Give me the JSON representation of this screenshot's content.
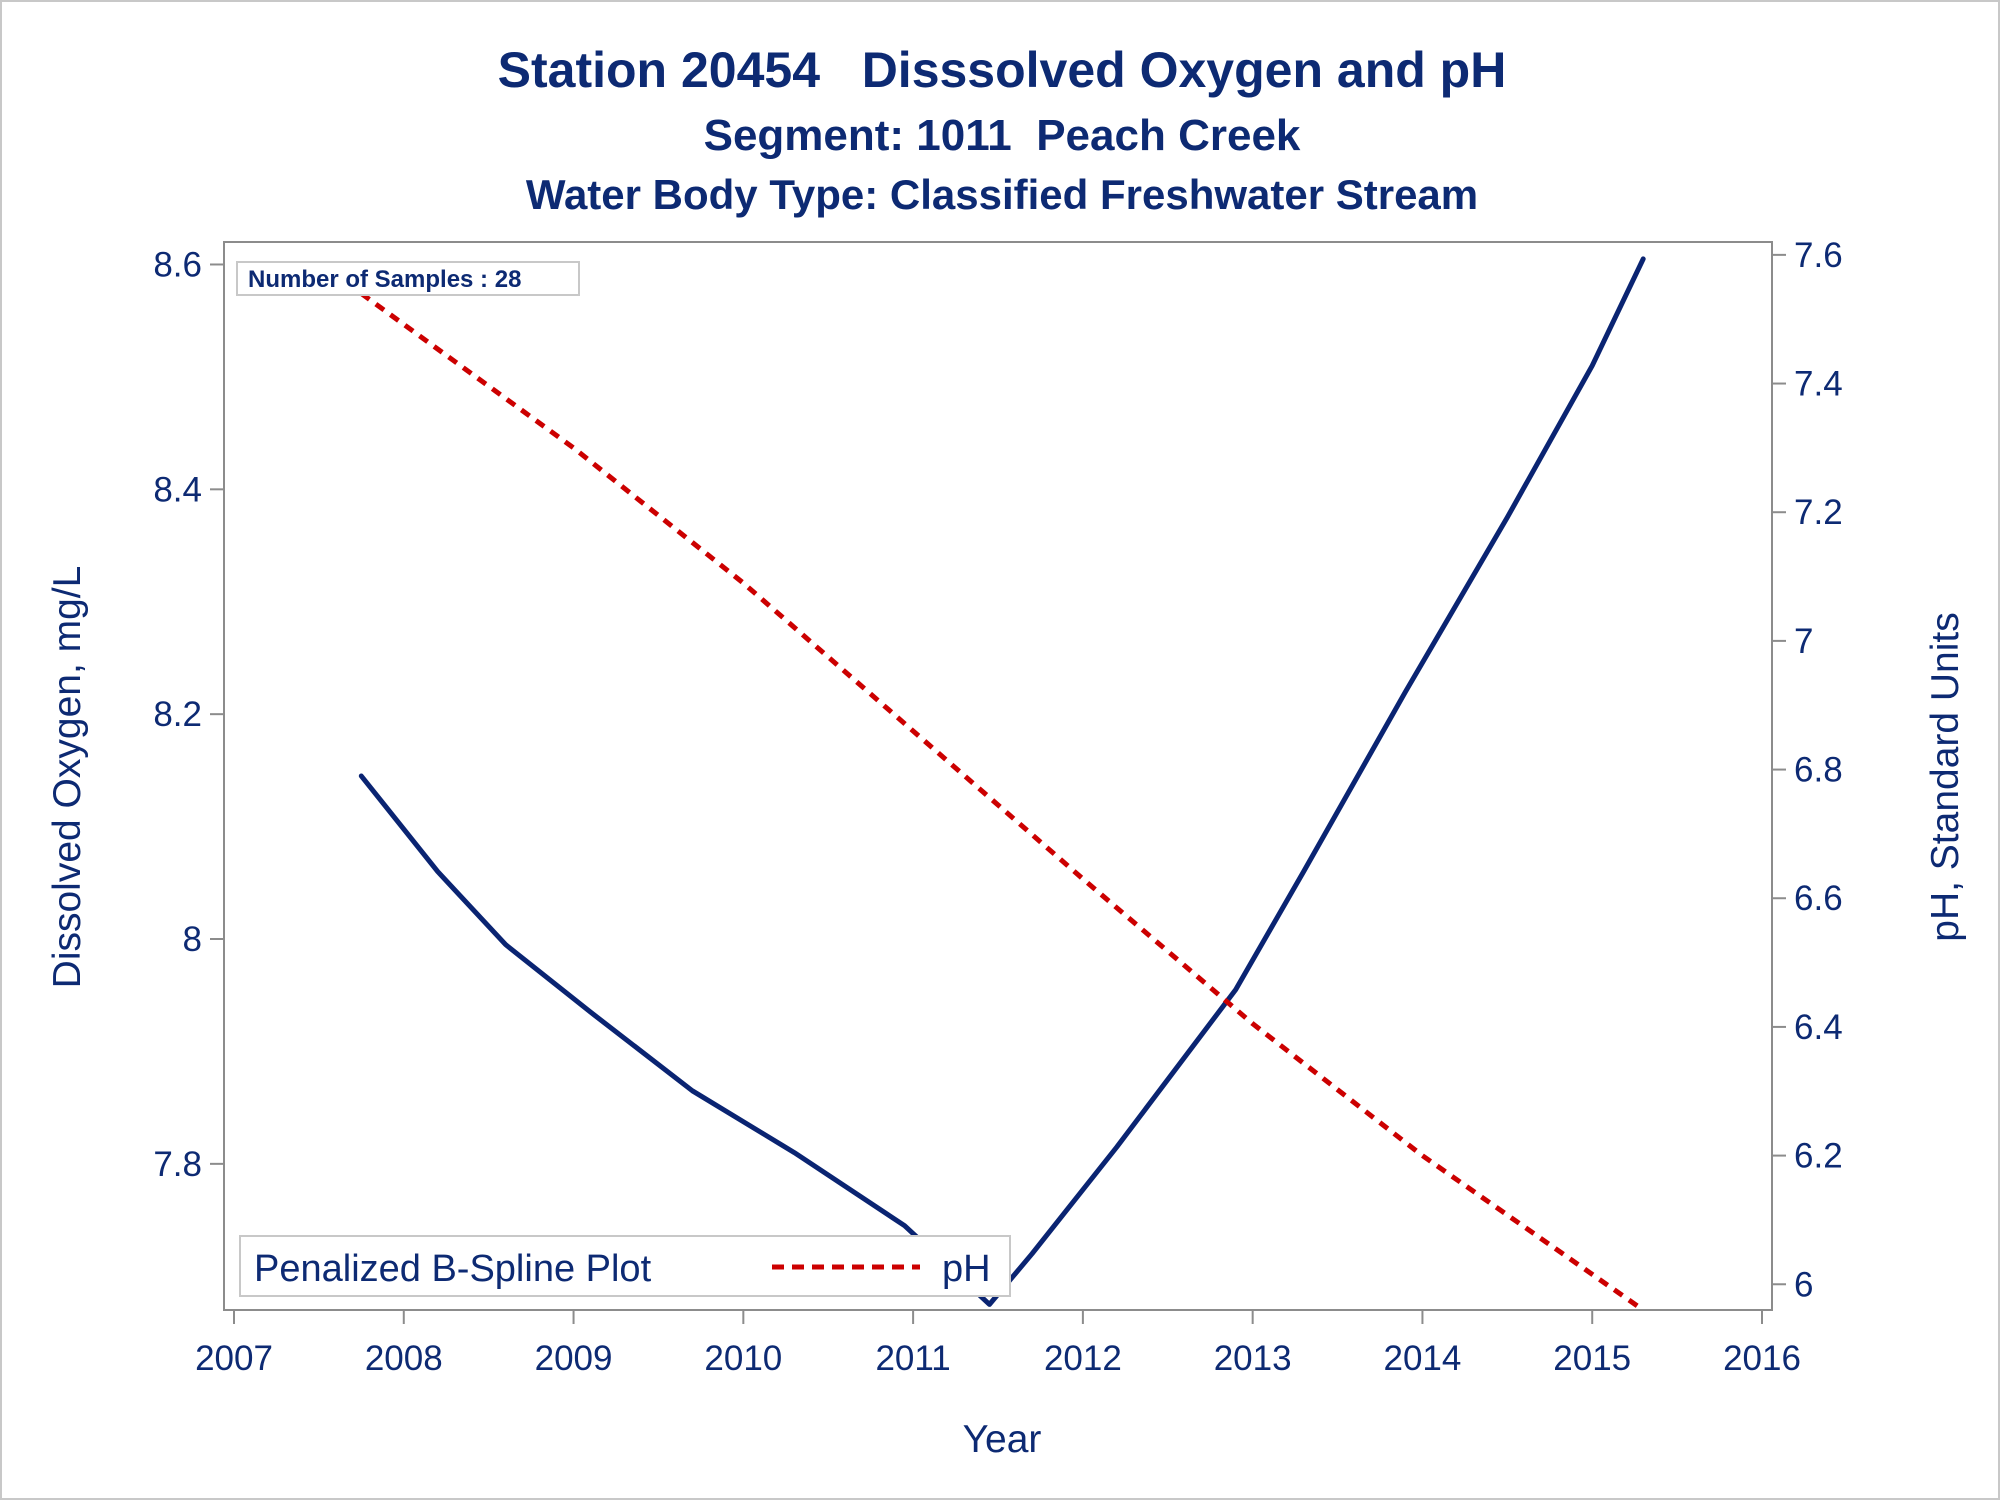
{
  "titles": {
    "line1": "Station 20454   Disssolved Oxygen and pH",
    "line2": "Segment: 1011  Peach Creek",
    "line3": "Water Body Type: Classified Freshwater Stream"
  },
  "inset_label": "Number of Samples : 28",
  "legend": {
    "title": "Penalized B-Spline Plot",
    "entry": "pH"
  },
  "colors": {
    "do_line": "#0a2472",
    "ph_line": "#cc0000",
    "text": "#0d2a73",
    "axis": "#8c8c8c"
  },
  "chart_data": {
    "type": "line",
    "xlabel": "Year",
    "ylabel_left": "Dissolved Oxygen, mg/L",
    "ylabel_right": "pH, Standard Units",
    "x_ticks": [
      "2007",
      "2008",
      "2009",
      "2010",
      "2011",
      "2012",
      "2013",
      "2014",
      "2015",
      "2016"
    ],
    "xlim": [
      2007,
      2016
    ],
    "y_left_ticks": [
      "7.8",
      "8",
      "8.2",
      "8.4",
      "8.6"
    ],
    "y_left_lim": [
      7.67,
      8.62
    ],
    "y_right_ticks": [
      "6",
      "6.2",
      "6.4",
      "6.6",
      "6.8",
      "7",
      "7.2",
      "7.4",
      "7.6"
    ],
    "y_right_lim": [
      5.96,
      7.62
    ],
    "grid": false,
    "legend_position": "bottom-left",
    "series": [
      {
        "axis": "left",
        "style": "solid",
        "x": [
          2007.75,
          2008.2,
          2008.6,
          2009.1,
          2009.7,
          2010.3,
          2010.95,
          2011.45,
          2011.7,
          2012.2,
          2012.9,
          2013.3,
          2013.9,
          2014.5,
          2015.0,
          2015.3
        ],
        "y": [
          8.145,
          8.06,
          7.995,
          7.935,
          7.865,
          7.81,
          7.745,
          7.675,
          7.72,
          7.815,
          7.955,
          8.06,
          8.22,
          8.375,
          8.51,
          8.605
        ]
      },
      {
        "name": "pH",
        "axis": "right",
        "style": "dashed",
        "x": [
          2007.75,
          2009.0,
          2010.0,
          2011.0,
          2012.0,
          2013.0,
          2014.0,
          2015.3
        ],
        "y": [
          7.54,
          7.3,
          7.09,
          6.86,
          6.63,
          6.405,
          6.2,
          5.96
        ]
      }
    ]
  }
}
